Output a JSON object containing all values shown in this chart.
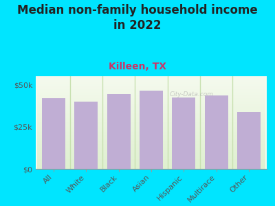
{
  "title": "Median non-family household income\nin 2022",
  "subtitle": "Killeen, TX",
  "categories": [
    "All",
    "White",
    "Black",
    "Asian",
    "Hispanic",
    "Multirace",
    "Other"
  ],
  "values": [
    42000,
    40000,
    44500,
    46500,
    42500,
    43500,
    34000
  ],
  "bar_color": "#c0aed4",
  "background_color": "#00e5ff",
  "plot_bg_top": "#f5faee",
  "plot_bg_bottom": "#dff0d0",
  "yticks": [
    0,
    25000,
    50000
  ],
  "ytick_labels": [
    "$0",
    "$25k",
    "$50k"
  ],
  "ylim": [
    0,
    55000
  ],
  "title_fontsize": 12,
  "subtitle_fontsize": 10,
  "subtitle_color": "#cc3366",
  "title_color": "#222222",
  "tick_color": "#555555",
  "divider_color": "#c8e0b0",
  "watermark": "City-Data.com"
}
